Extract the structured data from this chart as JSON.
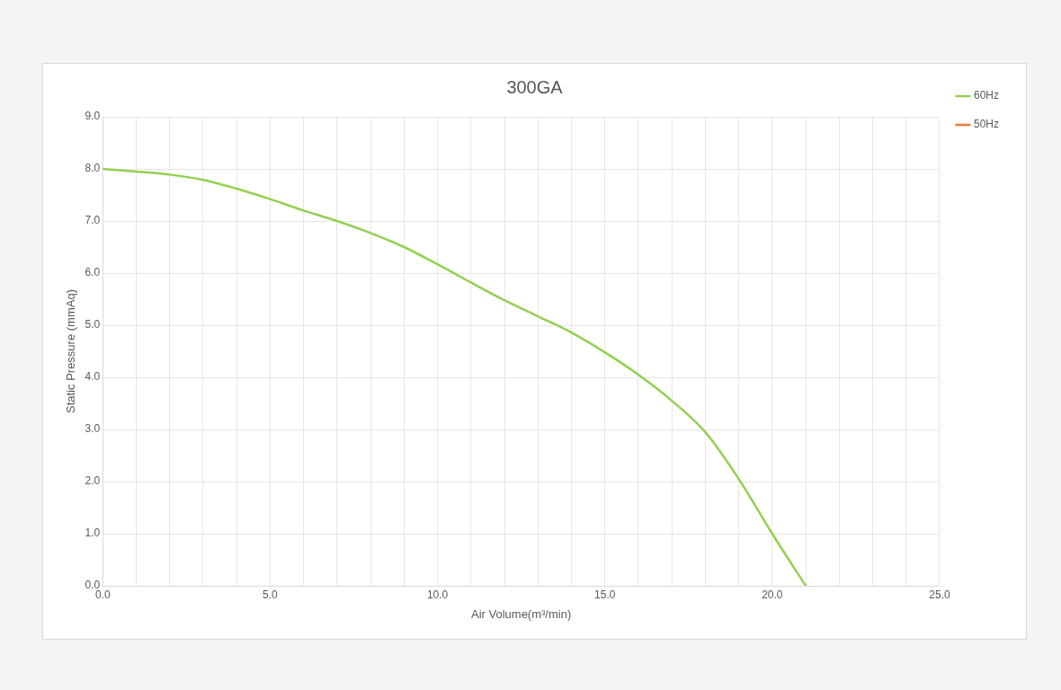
{
  "chart_data": {
    "type": "line",
    "title": "300GA",
    "xlabel": "Air Volume(m³/min)",
    "ylabel": "Static Pressure (mmAq)",
    "x": [
      0,
      1,
      2,
      3,
      4,
      5,
      6,
      7,
      8,
      9,
      10,
      11,
      12,
      13,
      14,
      15,
      16,
      17,
      18,
      19,
      20,
      21
    ],
    "series": [
      {
        "name": "60Hz",
        "color": "#92d050",
        "values": [
          8.0,
          7.95,
          7.89,
          7.79,
          7.62,
          7.42,
          7.2,
          7.0,
          6.77,
          6.5,
          6.17,
          5.82,
          5.48,
          5.17,
          4.86,
          4.48,
          4.05,
          3.55,
          2.95,
          2.05,
          1.0,
          0
        ]
      },
      {
        "name": "50Hz",
        "color": "#ed7d31",
        "values": [
          null,
          null,
          null,
          null,
          null,
          null,
          null,
          null,
          null,
          null,
          null,
          null,
          null,
          null,
          null,
          null,
          null,
          null,
          null,
          null,
          null,
          null
        ]
      }
    ],
    "xlim": [
      0,
      25
    ],
    "xticks": [
      {
        "value": 0,
        "label": "0.0"
      },
      {
        "value": 1,
        "label": null
      },
      {
        "value": 2,
        "label": null
      },
      {
        "value": 3,
        "label": null
      },
      {
        "value": 4,
        "label": null
      },
      {
        "value": 5,
        "label": "5.0"
      },
      {
        "value": 6,
        "label": null
      },
      {
        "value": 7,
        "label": null
      },
      {
        "value": 8,
        "label": null
      },
      {
        "value": 9,
        "label": null
      },
      {
        "value": 10,
        "label": "10.0"
      },
      {
        "value": 11,
        "label": null
      },
      {
        "value": 12,
        "label": null
      },
      {
        "value": 13,
        "label": null
      },
      {
        "value": 14,
        "label": null
      },
      {
        "value": 15,
        "label": "15.0"
      },
      {
        "value": 16,
        "label": null
      },
      {
        "value": 17,
        "label": null
      },
      {
        "value": 18,
        "label": null
      },
      {
        "value": 19,
        "label": null
      },
      {
        "value": 20,
        "label": "20.0"
      },
      {
        "value": 21,
        "label": null
      },
      {
        "value": 22,
        "label": null
      },
      {
        "value": 23,
        "label": null
      },
      {
        "value": 24,
        "label": null
      },
      {
        "value": 25,
        "label": "25.0"
      }
    ],
    "ylim": [
      0,
      9
    ],
    "yticks": [
      {
        "value": 0,
        "label": "0.0"
      },
      {
        "value": 1,
        "label": "1.0"
      },
      {
        "value": 2,
        "label": "2.0"
      },
      {
        "value": 3,
        "label": "3.0"
      },
      {
        "value": 4,
        "label": "4.0"
      },
      {
        "value": 5,
        "label": "5.0"
      },
      {
        "value": 6,
        "label": "6.0"
      },
      {
        "value": 7,
        "label": "7.0"
      },
      {
        "value": 8,
        "label": "8.0"
      },
      {
        "value": 9,
        "label": "9.0"
      }
    ],
    "grid": true,
    "legend": "top right",
    "marker": "none",
    "line_style": "solid"
  }
}
